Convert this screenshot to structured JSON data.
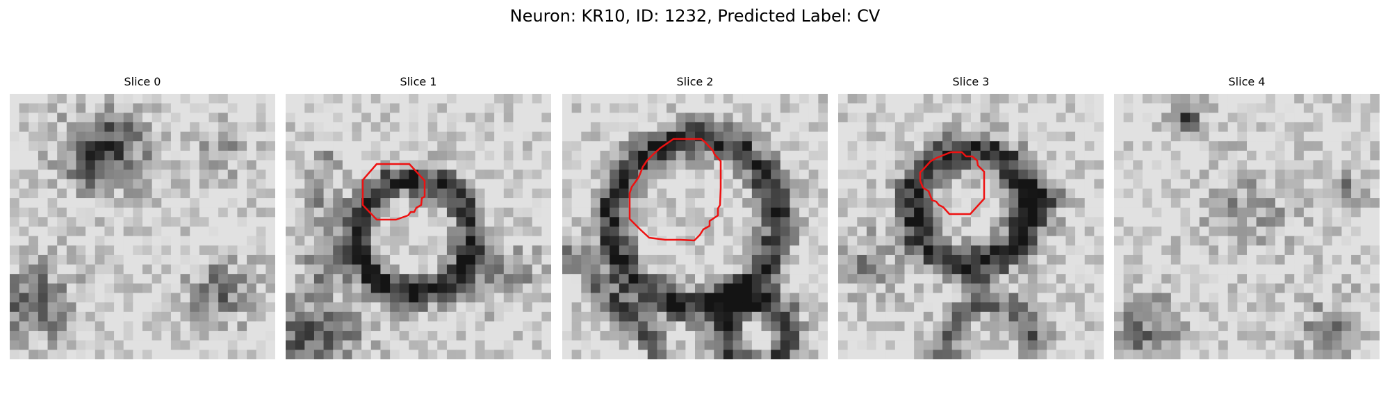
{
  "figure": {
    "title": "Neuron: KR10, ID: 1232, Predicted Label: CV"
  },
  "panels": [
    {
      "title": "Slice 0",
      "has_contour": false,
      "seed": 11,
      "dark_blobs": "blob-upper-left"
    },
    {
      "title": "Slice 1",
      "has_contour": true,
      "seed": 23,
      "dark_blobs": "ring-small"
    },
    {
      "title": "Slice 2",
      "has_contour": true,
      "seed": 37,
      "dark_blobs": "ring-large"
    },
    {
      "title": "Slice 3",
      "has_contour": true,
      "seed": 41,
      "dark_blobs": "ring-medium"
    },
    {
      "title": "Slice 4",
      "has_contour": false,
      "seed": 59,
      "dark_blobs": "faint"
    }
  ],
  "colors": {
    "contour": "#ee1111",
    "background": "#ffffff"
  }
}
